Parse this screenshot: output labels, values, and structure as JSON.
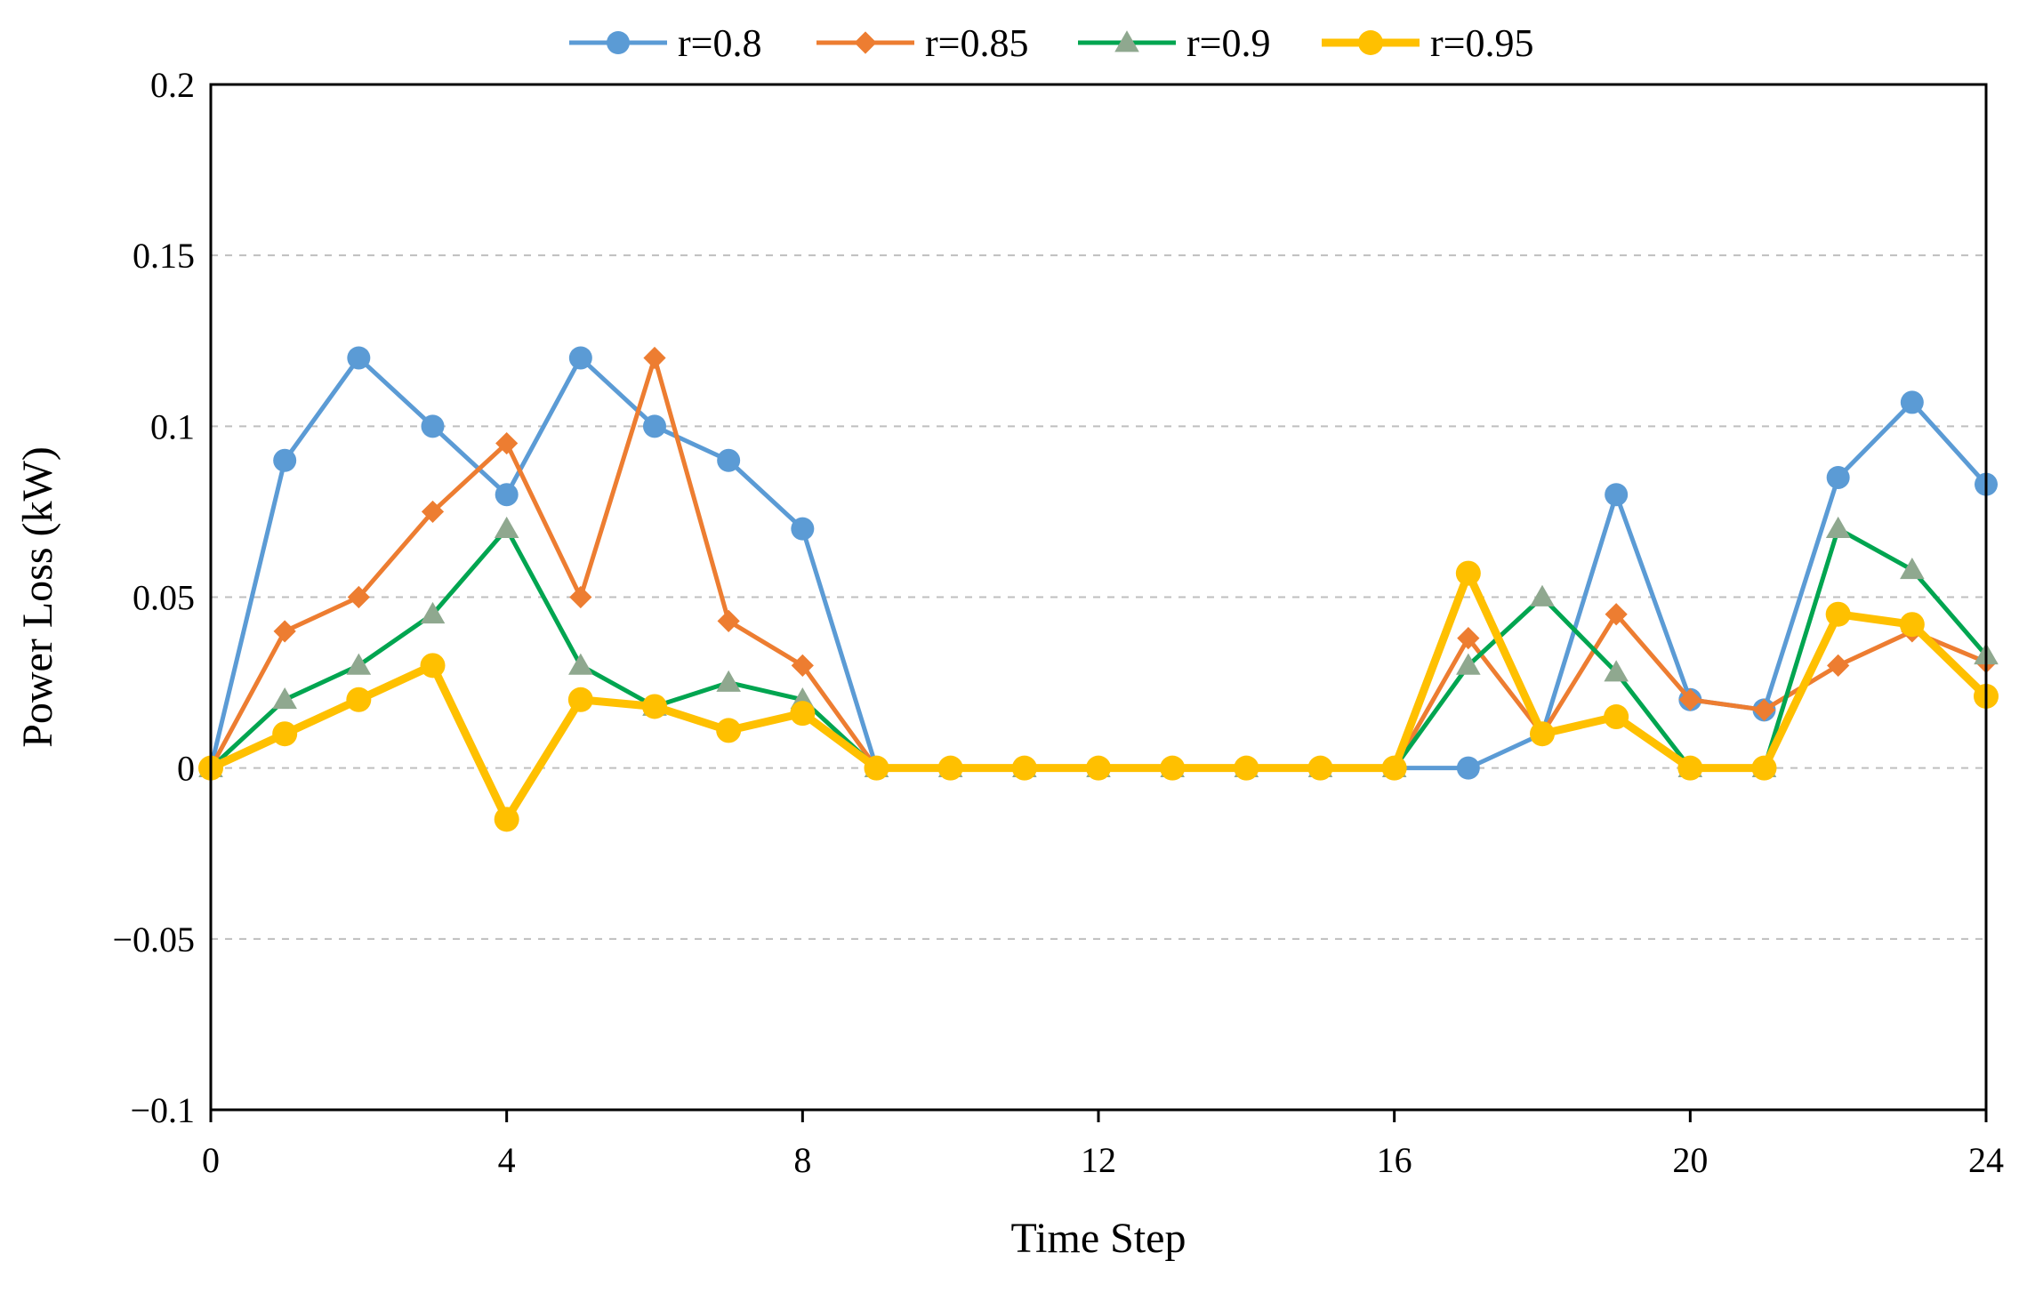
{
  "chart_data": {
    "type": "line",
    "title": "",
    "xlabel": "Time Step",
    "ylabel": "Power Loss (kW)",
    "xlim": [
      0,
      24
    ],
    "ylim": [
      -0.1,
      0.2
    ],
    "x_ticks": [
      0,
      4,
      8,
      12,
      16,
      20,
      24
    ],
    "x_tick_labels": [
      "0",
      "4",
      "8",
      "12",
      "16",
      "20",
      "24"
    ],
    "y_ticks": [
      -0.1,
      -0.05,
      0,
      0.05,
      0.1,
      0.15,
      0.2
    ],
    "y_tick_labels": [
      "−0.1",
      "−0.05",
      "0",
      "0.05",
      "0.1",
      "0.15",
      "0.2"
    ],
    "grid": "horizontal dashed",
    "legend_position": "top",
    "x": [
      0,
      1,
      2,
      3,
      4,
      5,
      6,
      7,
      8,
      9,
      10,
      11,
      12,
      13,
      14,
      15,
      16,
      17,
      18,
      19,
      20,
      21,
      22,
      23,
      24
    ],
    "series": [
      {
        "name": "r=0.8",
        "color": "#5B9BD5",
        "marker": "circle",
        "values": [
          0,
          0.09,
          0.12,
          0.1,
          0.08,
          0.12,
          0.1,
          0.09,
          0.07,
          0,
          0,
          0,
          0,
          0,
          0,
          0,
          0,
          0,
          0.01,
          0.08,
          0.02,
          0.017,
          0.085,
          0.107,
          0.083
        ]
      },
      {
        "name": "r=0.85",
        "color": "#ED7D31",
        "marker": "diamond",
        "values": [
          0,
          0.04,
          0.05,
          0.075,
          0.095,
          0.05,
          0.12,
          0.043,
          0.03,
          0,
          0,
          0,
          0,
          0,
          0,
          0,
          0,
          0.038,
          0.01,
          0.045,
          0.02,
          0.017,
          0.03,
          0.04,
          0.031
        ]
      },
      {
        "name": "r=0.9",
        "color": "#00A550",
        "marker_color": "#8FA88F",
        "marker": "triangle",
        "values": [
          0,
          0.02,
          0.03,
          0.045,
          0.07,
          0.03,
          0.018,
          0.025,
          0.02,
          0,
          0,
          0,
          0,
          0,
          0,
          0,
          0,
          0.03,
          0.05,
          0.028,
          0,
          0,
          0.07,
          0.058,
          0.033
        ]
      },
      {
        "name": "r=0.95",
        "color": "#FFC000",
        "marker": "circle",
        "values": [
          0,
          0.01,
          0.02,
          0.03,
          -0.015,
          0.02,
          0.018,
          0.011,
          0.016,
          0,
          0,
          0,
          0,
          0,
          0,
          0,
          0,
          0.057,
          0.01,
          0.015,
          0,
          0,
          0.045,
          0.042,
          0.021
        ]
      }
    ]
  }
}
